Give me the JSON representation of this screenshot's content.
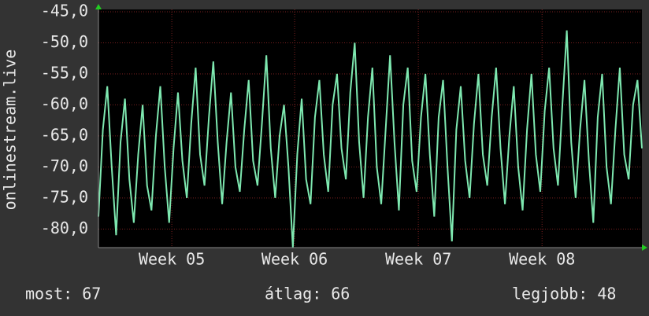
{
  "chart_data": {
    "type": "line",
    "ylabel": "onlinestream.live",
    "series": [
      {
        "color": "#7ee8b0",
        "values": [
          -78,
          -64,
          -57,
          -70,
          -81,
          -66,
          -59,
          -72,
          -79,
          -68,
          -60,
          -73,
          -77,
          -65,
          -57,
          -70,
          -79,
          -67,
          -58,
          -69,
          -75,
          -63,
          -54,
          -68,
          -73,
          -62,
          -53,
          -66,
          -76,
          -66,
          -58,
          -70,
          -74,
          -64,
          -56,
          -69,
          -73,
          -63,
          -52,
          -67,
          -75,
          -65,
          -60,
          -70,
          -83,
          -68,
          -59,
          -72,
          -76,
          -62,
          -56,
          -68,
          -74,
          -60,
          -55,
          -67,
          -72,
          -58,
          -50,
          -66,
          -75,
          -62,
          -54,
          -70,
          -76,
          -64,
          -52,
          -66,
          -77,
          -60,
          -54,
          -69,
          -74,
          -62,
          -55,
          -68,
          -78,
          -62,
          -56,
          -70,
          -82,
          -64,
          -57,
          -69,
          -75,
          -63,
          -55,
          -68,
          -73,
          -62,
          -54,
          -67,
          -76,
          -65,
          -57,
          -70,
          -77,
          -64,
          -55,
          -68,
          -74,
          -61,
          -54,
          -67,
          -73,
          -60,
          -48,
          -66,
          -75,
          -64,
          -56,
          -69,
          -79,
          -62,
          -55,
          -70,
          -76,
          -64,
          -54,
          -68,
          -72,
          -60,
          -56,
          -67
        ]
      }
    ],
    "xlim": [
      0,
      123
    ],
    "xticks": [
      {
        "value": 16.6,
        "label": "Week 05"
      },
      {
        "value": 44.4,
        "label": "Week 06"
      },
      {
        "value": 72.4,
        "label": "Week 07"
      },
      {
        "value": 100.4,
        "label": "Week 08"
      }
    ],
    "ylim": [
      -83,
      -45
    ],
    "yticks": [
      {
        "value": -45,
        "label": "-45,0"
      },
      {
        "value": -50,
        "label": "-50,0"
      },
      {
        "value": -55,
        "label": "-55,0"
      },
      {
        "value": -60,
        "label": "-60,0"
      },
      {
        "value": -65,
        "label": "-65,0"
      },
      {
        "value": -70,
        "label": "-70,0"
      },
      {
        "value": -75,
        "label": "-75,0"
      },
      {
        "value": -80,
        "label": "-80,0"
      }
    ],
    "grid": true,
    "stats": [
      {
        "label": "most:",
        "value": 67
      },
      {
        "label": "átlag:",
        "value": 66
      },
      {
        "label": "legjobb:",
        "value": 48
      }
    ]
  }
}
